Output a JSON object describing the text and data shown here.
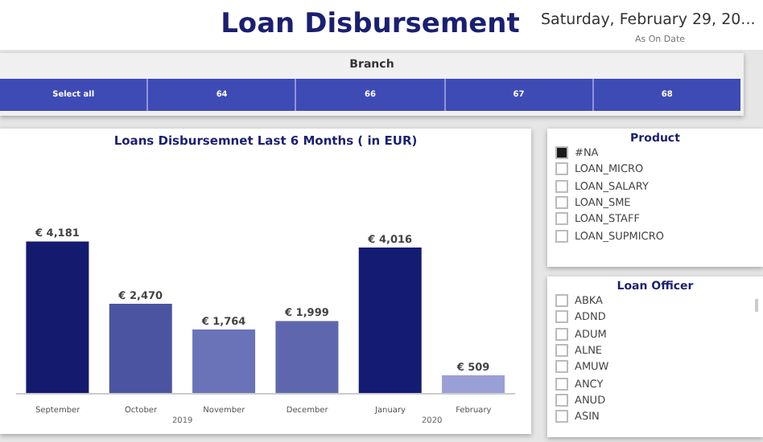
{
  "chart_data": [
    {
      "type": "other",
      "title": "Loan Disbursement",
      "subtitle": "Saturday, February 29, 20...",
      "annotations": [
        "As On Date"
      ]
    },
    {
      "type": "other",
      "title": "Branch",
      "categories": [
        "Select all",
        "64",
        "66",
        "67",
        "68"
      ]
    },
    {
      "type": "bar",
      "title": "Loans Disbursemnet Last 6 Months ( in EUR)",
      "categories": [
        "September",
        "October",
        "November",
        "December",
        "January",
        "February"
      ],
      "values": [
        4181,
        2470,
        1764,
        1999,
        4016,
        509
      ],
      "colors": [
        "#141a6e",
        "#4a54a0",
        "#6a73b8",
        "#5e67ad",
        "#141b72",
        "#9aa0d6"
      ],
      "value_labels": [
        "€ 4,181",
        "€ 2,470",
        "€ 1,764",
        "€ 1,999",
        "€ 4,016",
        "€ 509"
      ],
      "annotations": [
        "2019",
        "2020"
      ]
    },
    {
      "type": "other",
      "title": "Product",
      "categories": [
        "#NA",
        "LOAN_MICRO",
        "LOAN_SALARY",
        "LOAN_SME",
        "LOAN_STAFF",
        "LOAN_SUPMICRO"
      ],
      "colors": [
        "#1a1a1a",
        "#ffffff",
        "#ffffff",
        "#ffffff",
        "#ffffff",
        "#ffffff"
      ]
    },
    {
      "type": "other",
      "title": "Loan Officer",
      "categories": [
        "ABKA",
        "ADND",
        "ADUM",
        "ALNE",
        "AMUW",
        "ANCY",
        "ANUD",
        "ASIN"
      ],
      "colors": [
        "#ffffff",
        "#ffffff",
        "#ffffff",
        "#ffffff",
        "#ffffff",
        "#ffffff",
        "#ffffff",
        "#ffffff"
      ]
    }
  ]
}
